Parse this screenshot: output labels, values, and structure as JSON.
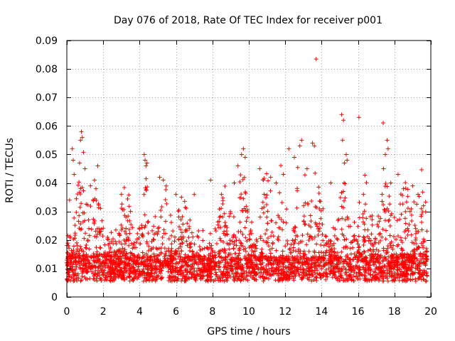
{
  "chart_data": {
    "type": "scatter",
    "title": "Day 076 of 2018, Rate Of TEC Index for receiver p001",
    "xlabel": "GPS time / hours",
    "ylabel": "ROTI / TECUs",
    "xlim": [
      0,
      20
    ],
    "ylim": [
      0,
      0.09
    ],
    "x_ticks": [
      0,
      2,
      4,
      6,
      8,
      10,
      12,
      14,
      16,
      18,
      20
    ],
    "y_ticks": [
      0,
      0.01,
      0.02,
      0.03,
      0.04,
      0.05,
      0.06,
      0.07,
      0.08,
      0.09
    ],
    "x_tick_labels": [
      "0",
      "2",
      "4",
      "6",
      "8",
      "10",
      "12",
      "14",
      "16",
      "18",
      "20"
    ],
    "y_tick_labels": [
      "0",
      "0.01",
      "0.02",
      "0.03",
      "0.04",
      "0.05",
      "0.06",
      "0.07",
      "0.08",
      "0.09"
    ],
    "grid": true,
    "marker": "+",
    "series": [
      {
        "name": "ROTI",
        "color": "#ff0000",
        "x_range": [
          0,
          19.8
        ],
        "baseline_median": 0.01,
        "typical_max": 0.035,
        "points": [
          [
            0.15,
            0.034
          ],
          [
            0.3,
            0.052
          ],
          [
            0.35,
            0.048
          ],
          [
            0.4,
            0.043
          ],
          [
            0.7,
            0.047
          ],
          [
            0.75,
            0.055
          ],
          [
            0.8,
            0.058
          ],
          [
            0.85,
            0.056
          ],
          [
            1.0,
            0.045
          ],
          [
            1.3,
            0.039
          ],
          [
            1.7,
            0.046
          ],
          [
            1.6,
            0.038
          ],
          [
            3.0,
            0.036
          ],
          [
            3.5,
            0.03
          ],
          [
            4.25,
            0.05
          ],
          [
            4.3,
            0.048
          ],
          [
            4.35,
            0.046
          ],
          [
            4.4,
            0.047
          ],
          [
            5.1,
            0.042
          ],
          [
            5.3,
            0.041
          ],
          [
            6.0,
            0.036
          ],
          [
            6.3,
            0.035
          ],
          [
            7.0,
            0.036
          ],
          [
            7.9,
            0.041
          ],
          [
            8.5,
            0.036
          ],
          [
            9.2,
            0.04
          ],
          [
            9.4,
            0.046
          ],
          [
            9.6,
            0.05
          ],
          [
            9.7,
            0.052
          ],
          [
            9.8,
            0.049
          ],
          [
            10.6,
            0.045
          ],
          [
            10.8,
            0.041
          ],
          [
            11.2,
            0.042
          ],
          [
            11.5,
            0.04
          ],
          [
            11.9,
            0.043
          ],
          [
            12.2,
            0.052
          ],
          [
            12.5,
            0.049
          ],
          [
            12.8,
            0.053
          ],
          [
            12.9,
            0.055
          ],
          [
            13.2,
            0.045
          ],
          [
            13.5,
            0.054
          ],
          [
            13.6,
            0.053
          ],
          [
            13.7,
            0.0835
          ],
          [
            14.5,
            0.04
          ],
          [
            15.1,
            0.064
          ],
          [
            15.15,
            0.055
          ],
          [
            15.2,
            0.062
          ],
          [
            15.25,
            0.047
          ],
          [
            15.35,
            0.05
          ],
          [
            15.4,
            0.048
          ],
          [
            16.05,
            0.063
          ],
          [
            16.3,
            0.036
          ],
          [
            17.4,
            0.045
          ],
          [
            17.5,
            0.05
          ],
          [
            17.6,
            0.055
          ],
          [
            17.65,
            0.052
          ],
          [
            17.8,
            0.04
          ],
          [
            18.2,
            0.043
          ],
          [
            18.5,
            0.038
          ],
          [
            19.0,
            0.039
          ],
          [
            19.3,
            0.036
          ],
          [
            19.6,
            0.032
          ]
        ]
      }
    ]
  }
}
